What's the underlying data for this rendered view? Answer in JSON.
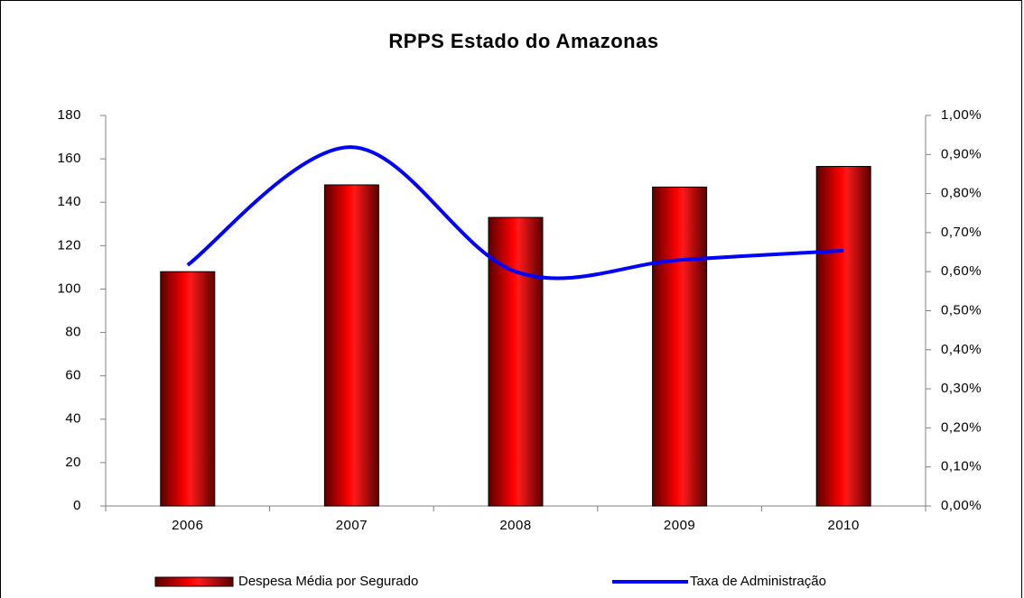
{
  "chart_data": {
    "type": "bar_line",
    "title": "RPPS Estado do Amazonas",
    "categories": [
      "2006",
      "2007",
      "2008",
      "2009",
      "2010"
    ],
    "series": [
      {
        "name": "Despesa Média por Segurado",
        "type": "bar",
        "color": "#ff0000",
        "values": [
          108,
          148,
          133,
          147,
          156.5
        ]
      },
      {
        "name": "Taxa de Administração",
        "type": "line",
        "axis": "y2",
        "color": "#0000ff",
        "values": [
          0.617,
          0.919,
          0.6,
          0.63,
          0.654
        ]
      }
    ],
    "ylim": [
      0,
      180
    ],
    "yticks": [
      0,
      20,
      40,
      60,
      80,
      100,
      120,
      140,
      160,
      180
    ],
    "y2lim": [
      0,
      1
    ],
    "y2ticks": [
      {
        "value": 0,
        "label": "0,00%"
      },
      {
        "value": 0.1,
        "label": "0,10%"
      },
      {
        "value": 0.2,
        "label": "0,20%"
      },
      {
        "value": 0.3,
        "label": "0,30%"
      },
      {
        "value": 0.4,
        "label": "0,40%"
      },
      {
        "value": 0.5,
        "label": "0,50%"
      },
      {
        "value": 0.6,
        "label": "0,60%"
      },
      {
        "value": 0.7,
        "label": "0,70%"
      },
      {
        "value": 0.8,
        "label": "0,80%"
      },
      {
        "value": 0.9,
        "label": "0,90%"
      },
      {
        "value": 1,
        "label": "1,00%"
      }
    ],
    "legend": "bottom"
  }
}
